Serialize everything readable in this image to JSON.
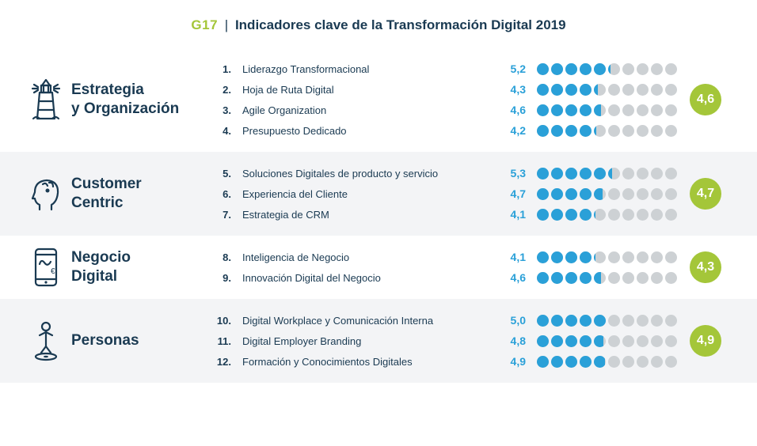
{
  "header": {
    "code": "G17",
    "separator": "|",
    "title": "Indicadores clave de la Transformación Digital 2019"
  },
  "styling": {
    "dot_count": 10,
    "dot_filled_color": "#2aa0d8",
    "dot_empty_color": "#cdd1d4",
    "avg_badge_bg": "#a4c639",
    "avg_badge_fg": "#ffffff",
    "score_color": "#2aa0d8",
    "text_color": "#1a3a52",
    "alt_row_bg": "#f3f4f6",
    "icon_stroke": "#1a3a52",
    "title_fontsize": 19,
    "item_fontsize": 13,
    "score_fontsize": 14
  },
  "sections": [
    {
      "icon": "lighthouse",
      "title": "Estrategia\ny Organización",
      "avg": "4,6",
      "alt": false,
      "items": [
        {
          "num": "1",
          "label": "Liderazgo Transformacional",
          "score": "5,2",
          "value": 5.2
        },
        {
          "num": "2",
          "label": "Hoja de Ruta Digital",
          "score": "4,3",
          "value": 4.3
        },
        {
          "num": "3",
          "label": "Agile Organization",
          "score": "4,6",
          "value": 4.6
        },
        {
          "num": "4",
          "label": "Presupuesto Dedicado",
          "score": "4,2",
          "value": 4.2
        }
      ]
    },
    {
      "icon": "head",
      "title": "Customer\nCentric",
      "avg": "4,7",
      "alt": true,
      "items": [
        {
          "num": "5",
          "label": "Soluciones Digitales de producto y servicio",
          "score": "5,3",
          "value": 5.3
        },
        {
          "num": "6",
          "label": "Experiencia del Cliente",
          "score": "4,7",
          "value": 4.7
        },
        {
          "num": "7",
          "label": "Estrategia de CRM",
          "score": "4,1",
          "value": 4.1
        }
      ]
    },
    {
      "icon": "mobile",
      "title": "Negocio\nDigital",
      "avg": "4,3",
      "alt": false,
      "items": [
        {
          "num": "8",
          "label": "Inteligencia de Negocio",
          "score": "4,1",
          "value": 4.1
        },
        {
          "num": "9",
          "label": "Innovación Digital del Negocio",
          "score": "4,6",
          "value": 4.6
        }
      ]
    },
    {
      "icon": "person",
      "title": "Personas",
      "avg": "4,9",
      "alt": true,
      "items": [
        {
          "num": "10",
          "label": "Digital Workplace y Comunicación Interna",
          "score": "5,0",
          "value": 5.0
        },
        {
          "num": "11",
          "label": "Digital Employer Branding",
          "score": "4,8",
          "value": 4.8
        },
        {
          "num": "12",
          "label": "Formación y Conocimientos Digitales",
          "score": "4,9",
          "value": 4.9
        }
      ]
    }
  ]
}
